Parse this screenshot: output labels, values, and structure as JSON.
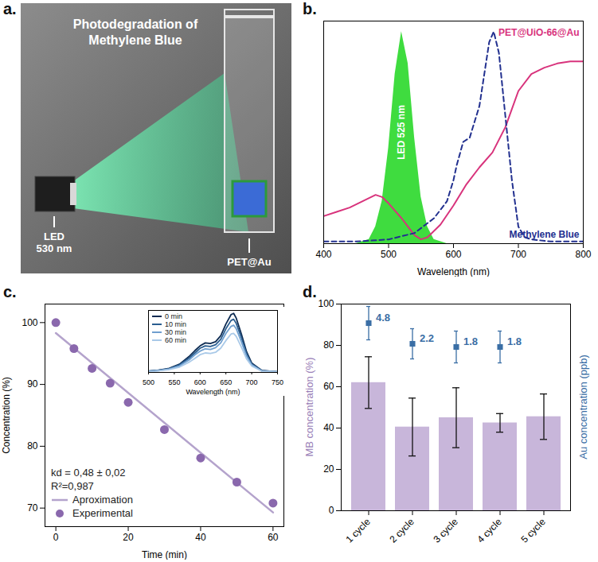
{
  "chart_data": [
    {
      "type": "diagram",
      "letter": "a.",
      "title": "Photodegradation of Methylene Blue",
      "labels": [
        "LED 530 nm",
        "PET@Au"
      ]
    },
    {
      "type": "line",
      "letter": "b.",
      "xlabel": "Wavelength (nm)",
      "xlim": [
        400,
        800
      ],
      "xticks": [
        400,
        500,
        600,
        700,
        800
      ],
      "ylim": [
        0,
        1.05
      ],
      "yticks": [],
      "tick_labels": "x",
      "series": [
        {
          "name": "LED 525 nm",
          "type": "area",
          "color": "#3fdc3f",
          "x": [
            450,
            470,
            480,
            490,
            500,
            510,
            520,
            530,
            540,
            550,
            560,
            570,
            590
          ],
          "values": [
            0,
            0.02,
            0.08,
            0.2,
            0.45,
            0.8,
            1.0,
            0.85,
            0.5,
            0.22,
            0.08,
            0.02,
            0
          ]
        },
        {
          "name": "PET@UiO-66@Au",
          "type": "line",
          "line_style": "solid",
          "color": "#d8337c",
          "x": [
            400,
            420,
            440,
            460,
            480,
            490,
            500,
            520,
            540,
            550,
            560,
            580,
            600,
            620,
            640,
            660,
            680,
            700,
            720,
            740,
            760,
            780,
            800
          ],
          "values": [
            0.13,
            0.15,
            0.17,
            0.2,
            0.23,
            0.22,
            0.19,
            0.12,
            0.04,
            0.02,
            0.03,
            0.09,
            0.18,
            0.28,
            0.36,
            0.43,
            0.55,
            0.72,
            0.8,
            0.83,
            0.85,
            0.86,
            0.86
          ]
        },
        {
          "name": "Methylene Blue",
          "type": "line",
          "line_style": "dashed",
          "color": "#22308f",
          "x": [
            400,
            450,
            500,
            540,
            570,
            590,
            600,
            605,
            615,
            625,
            640,
            650,
            655,
            662,
            670,
            680,
            690,
            700,
            710,
            720,
            750,
            800
          ],
          "values": [
            0.01,
            0.01,
            0.02,
            0.05,
            0.12,
            0.2,
            0.3,
            0.37,
            0.48,
            0.5,
            0.65,
            0.85,
            0.95,
            1.0,
            0.9,
            0.6,
            0.3,
            0.08,
            0.03,
            0.02,
            0.01,
            0.01
          ]
        }
      ]
    },
    {
      "type": "scatter",
      "letter": "c.",
      "xlabel": "Time (min)",
      "ylabel": "Concentration (%)",
      "xlim": [
        -3,
        63
      ],
      "xticks": [
        0,
        20,
        40,
        60
      ],
      "ylim": [
        67,
        103
      ],
      "yticks": [
        70,
        80,
        90,
        100
      ],
      "legend": "bottom-left",
      "annotations": [
        "kd = 0,48 ± 0,02",
        "R²=0,987"
      ],
      "series": [
        {
          "name": "Aproximation",
          "type": "line",
          "color": "#b4a3cc",
          "x": [
            0,
            60
          ],
          "values": [
            98.3,
            69.3
          ]
        },
        {
          "name": "Experimental",
          "type": "scatter",
          "marker": "circle",
          "color": "#8a68ad",
          "x": [
            0,
            5,
            10,
            15,
            20,
            30,
            40,
            50,
            60
          ],
          "values": [
            100,
            95.8,
            92.6,
            90.2,
            87.1,
            82.7,
            78.1,
            74.2,
            70.8
          ]
        }
      ],
      "inset": {
        "type": "line",
        "xlabel": "Wavelength (nm)",
        "xlim": [
          500,
          750
        ],
        "xticks": [
          500,
          550,
          600,
          650,
          700,
          750
        ],
        "ylim": [
          0,
          1.05
        ],
        "yticks": [],
        "tick_labels": "x",
        "legend": "top-left",
        "x": [
          500,
          520,
          540,
          560,
          580,
          590,
          600,
          610,
          620,
          630,
          640,
          650,
          660,
          665,
          670,
          680,
          690,
          700,
          720,
          750
        ],
        "series": [
          {
            "name": "0 min",
            "color": "#0d2b52",
            "values": [
              0.02,
              0.04,
              0.07,
              0.14,
              0.28,
              0.37,
              0.45,
              0.5,
              0.49,
              0.52,
              0.62,
              0.82,
              0.98,
              1.0,
              0.92,
              0.65,
              0.35,
              0.16,
              0.03,
              0.01
            ]
          },
          {
            "name": "10 min",
            "color": "#2a5d8f",
            "values": [
              0.02,
              0.04,
              0.06,
              0.13,
              0.25,
              0.33,
              0.41,
              0.45,
              0.44,
              0.47,
              0.56,
              0.74,
              0.88,
              0.9,
              0.83,
              0.59,
              0.32,
              0.14,
              0.03,
              0.01
            ]
          },
          {
            "name": "30 min",
            "color": "#6f9fcf",
            "values": [
              0.02,
              0.03,
              0.06,
              0.11,
              0.22,
              0.3,
              0.36,
              0.4,
              0.39,
              0.42,
              0.5,
              0.66,
              0.78,
              0.8,
              0.74,
              0.52,
              0.28,
              0.13,
              0.02,
              0.01
            ]
          },
          {
            "name": "60 min",
            "color": "#a9c9e8",
            "values": [
              0.01,
              0.03,
              0.05,
              0.09,
              0.18,
              0.24,
              0.3,
              0.33,
              0.32,
              0.34,
              0.41,
              0.54,
              0.65,
              0.66,
              0.61,
              0.43,
              0.23,
              0.11,
              0.02,
              0.01
            ]
          }
        ]
      }
    },
    {
      "type": "bar",
      "letter": "d.",
      "categories": [
        "1 cycle",
        "2 cycle",
        "3 cycle",
        "4 cycle",
        "5 cycle"
      ],
      "ylabel": "MB concentration (%)",
      "y2label": "Au concentration (ppb)",
      "ylim": [
        0,
        100
      ],
      "yticks": [
        0,
        20,
        40,
        60,
        80,
        100
      ],
      "y2lim": [
        -18.8,
        7.2
      ],
      "y2ticks": [],
      "series": [
        {
          "type": "bar",
          "color": "#c8b6da",
          "values": [
            62,
            40.5,
            45,
            42.5,
            45.5
          ],
          "errors": [
            12.5,
            14,
            14.5,
            4.5,
            11
          ]
        },
        {
          "type": "scatter",
          "axis": "y2",
          "marker": "square",
          "color": "#3a6ea5",
          "data_labels": true,
          "values": [
            4.8,
            2.2,
            1.8,
            1.8,
            null
          ],
          "errors": [
            2.1,
            1.9,
            2.0,
            2.0,
            null
          ]
        }
      ]
    }
  ]
}
